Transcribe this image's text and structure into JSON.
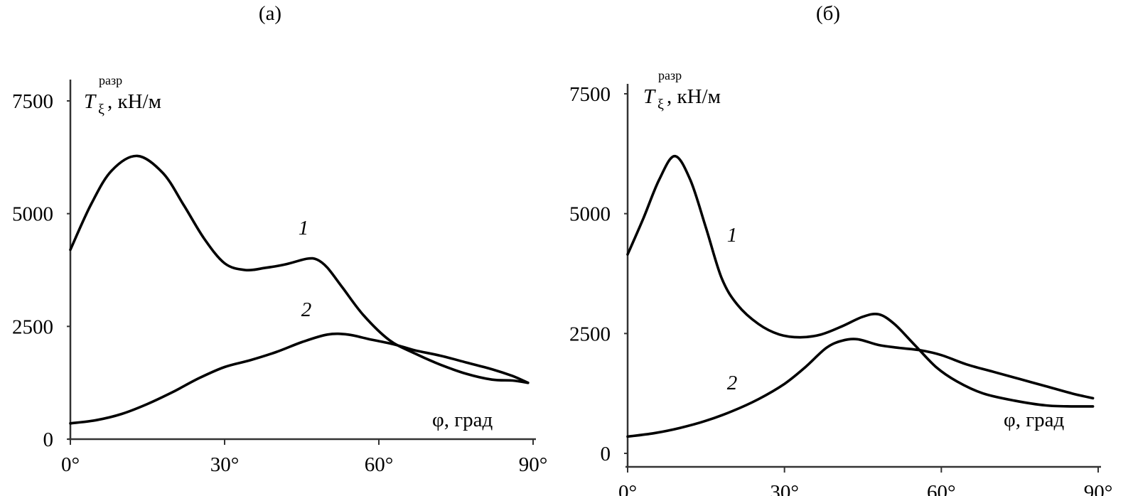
{
  "chart_data": [
    {
      "type": "line",
      "title": "(а)",
      "ylabel": {
        "symbol": "T",
        "subscript": "ξ",
        "superscript": "разр",
        "unit": ", кН/м"
      },
      "xlabel": "φ, град",
      "xlim": [
        0,
        90
      ],
      "ylim": [
        0,
        7500
      ],
      "xticks": [
        "0°",
        "30°",
        "60°",
        "90°"
      ],
      "yticks": [
        "0",
        "2500",
        "5000",
        "7500"
      ],
      "grid": false,
      "series": [
        {
          "name": "1",
          "x": [
            0,
            4,
            8,
            13,
            18,
            22,
            26,
            30,
            34,
            38,
            42,
            46,
            48,
            50,
            53,
            57,
            62,
            67,
            72,
            77,
            82,
            86,
            89
          ],
          "y": [
            4200,
            5200,
            5950,
            6280,
            5900,
            5200,
            4450,
            3900,
            3750,
            3800,
            3880,
            4000,
            3980,
            3800,
            3350,
            2750,
            2200,
            1900,
            1650,
            1450,
            1320,
            1300,
            1250
          ]
        },
        {
          "name": "2",
          "x": [
            0,
            5,
            10,
            15,
            20,
            25,
            30,
            35,
            40,
            45,
            50,
            54,
            58,
            63,
            67,
            72,
            77,
            82,
            86,
            89
          ],
          "y": [
            350,
            420,
            560,
            780,
            1050,
            1350,
            1600,
            1750,
            1930,
            2150,
            2320,
            2320,
            2220,
            2100,
            1970,
            1850,
            1700,
            1550,
            1400,
            1250
          ]
        }
      ],
      "curve_labels": [
        "1",
        "2"
      ]
    },
    {
      "type": "line",
      "title": "(б)",
      "ylabel": {
        "symbol": "T",
        "subscript": "ξ",
        "superscript": "разр",
        "unit": ", кН/м"
      },
      "xlabel": "φ, град",
      "xlim": [
        0,
        90
      ],
      "ylim": [
        0,
        7500
      ],
      "xticks": [
        "0°",
        "30°",
        "60°",
        "90°"
      ],
      "yticks": [
        "0",
        "2500",
        "5000",
        "7500"
      ],
      "grid": false,
      "series": [
        {
          "name": "1",
          "x": [
            0,
            3,
            6,
            9,
            12,
            15,
            18,
            21,
            25,
            29,
            33,
            37,
            41,
            45,
            48,
            51,
            55,
            59,
            63,
            68,
            74,
            80,
            85,
            89
          ],
          "y": [
            4150,
            4900,
            5700,
            6200,
            5700,
            4700,
            3650,
            3100,
            2700,
            2480,
            2420,
            2480,
            2650,
            2850,
            2900,
            2700,
            2250,
            1800,
            1500,
            1250,
            1100,
            1000,
            980,
            980
          ]
        },
        {
          "name": "2",
          "x": [
            0,
            5,
            10,
            15,
            20,
            25,
            30,
            34,
            38,
            41,
            44,
            48,
            52,
            56,
            60,
            65,
            70,
            75,
            80,
            85,
            89
          ],
          "y": [
            350,
            420,
            530,
            680,
            880,
            1130,
            1450,
            1800,
            2200,
            2350,
            2380,
            2260,
            2200,
            2150,
            2050,
            1850,
            1700,
            1550,
            1400,
            1250,
            1150
          ]
        }
      ],
      "curve_labels": [
        "1",
        "2"
      ]
    }
  ]
}
